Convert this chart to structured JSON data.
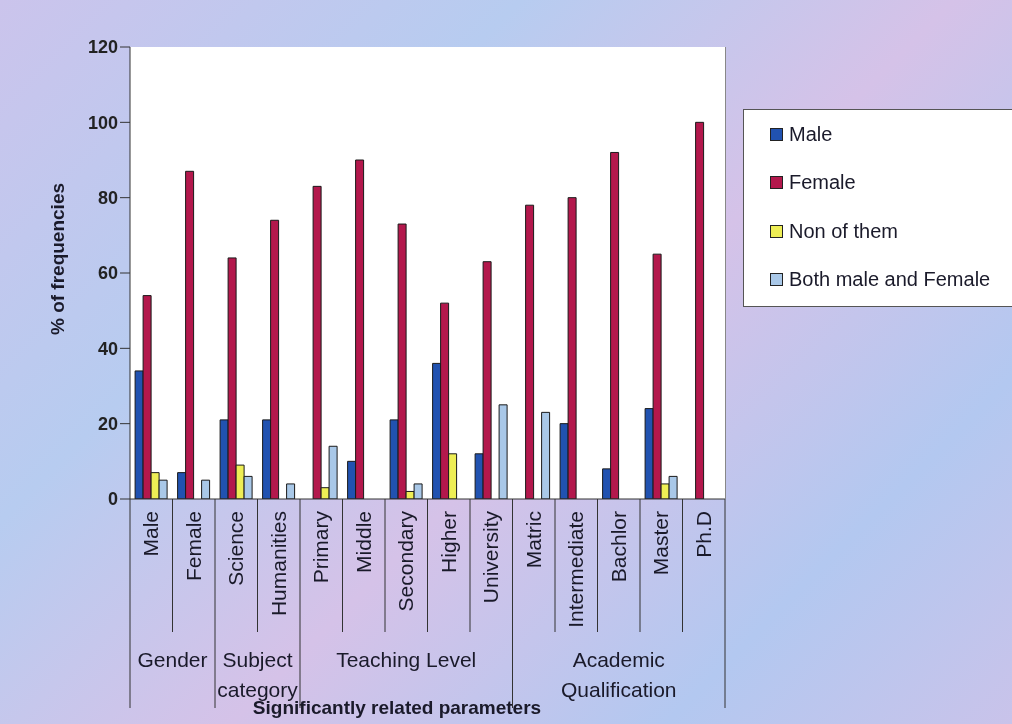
{
  "chart_data": {
    "type": "bar",
    "xlabel": "Significantly related parameters",
    "ylabel": "% of frequencies",
    "categories": [
      "Male",
      "Female",
      "Science",
      "Humanities",
      "Primary",
      "Middle",
      "Secondary",
      "Higher",
      "University",
      "Matric",
      "Intermediate",
      "Bachlor",
      "Master",
      "Ph.D"
    ],
    "series": [
      {
        "name": "Male",
        "color": "#2152b0",
        "values": [
          34,
          7,
          21,
          21,
          0,
          10,
          21,
          36,
          12,
          0,
          20,
          8,
          24,
          0
        ]
      },
      {
        "name": "Female",
        "color": "#b3184c",
        "values": [
          54,
          87,
          64,
          74,
          83,
          90,
          73,
          52,
          63,
          78,
          80,
          92,
          65,
          100
        ]
      },
      {
        "name": "Non of them",
        "color": "#eeee55",
        "values": [
          7,
          0,
          9,
          0,
          3,
          0,
          2,
          12,
          0,
          0,
          0,
          0,
          4,
          0
        ]
      },
      {
        "name": "Both male and Female",
        "color": "#a9c8e8",
        "values": [
          5,
          5,
          6,
          4,
          14,
          0,
          4,
          0,
          25,
          23,
          0,
          0,
          6,
          0
        ]
      }
    ],
    "ylim": [
      0,
      120
    ],
    "yticks": [
      0,
      20,
      40,
      60,
      80,
      100,
      120
    ],
    "legend": "right",
    "annotations": [
      "Gender",
      "Subject category",
      "Teaching Level",
      "Academic Qualification"
    ]
  }
}
